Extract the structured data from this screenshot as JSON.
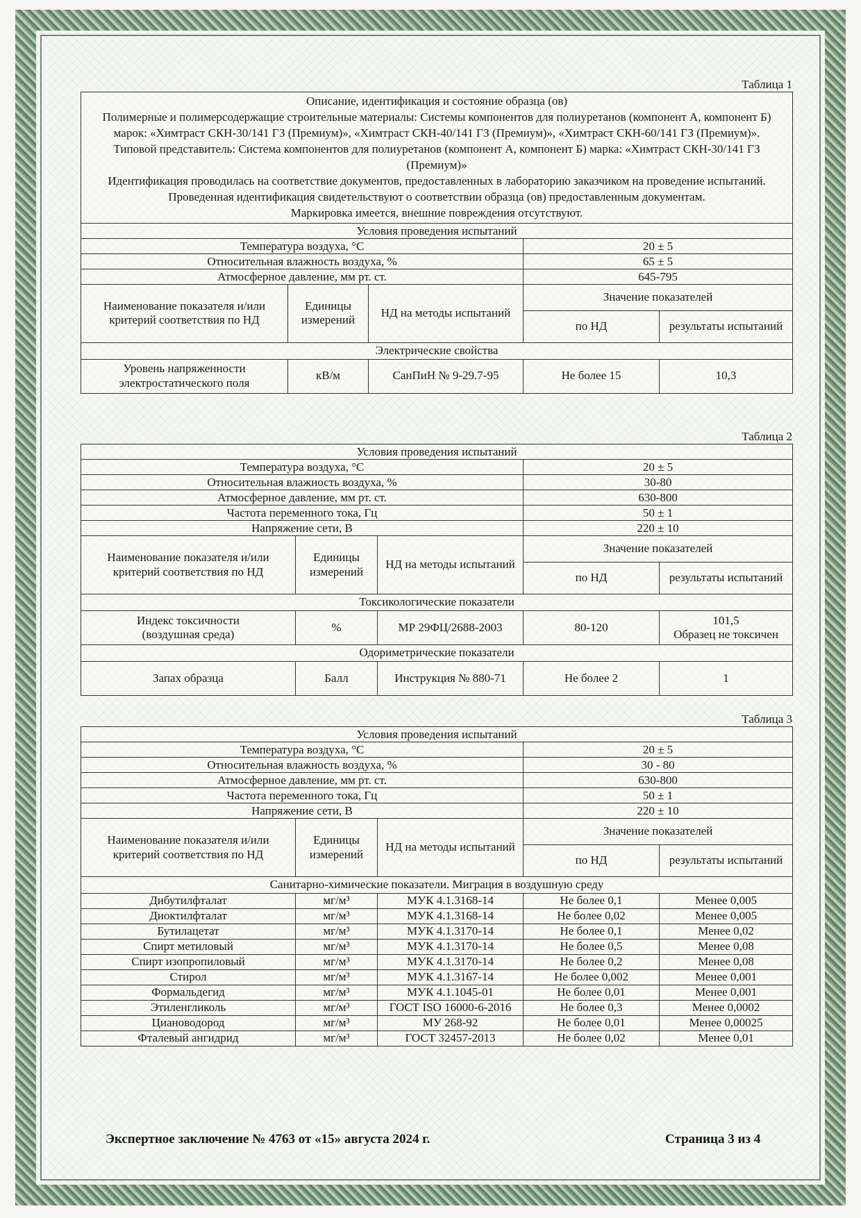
{
  "tables": [
    {
      "label": "Таблица 1",
      "description": [
        "Описание, идентификация и состояние образца (ов)",
        "Полимерные и полимерсодержащие строительные материалы: Системы компонентов для полиуретанов (компонент А, компонент Б) марок: «Химтраст СКН-30/141 ГЗ (Премиум)», «Химтраст СКН-40/141 ГЗ (Премиум)», «Химтраст СКН-60/141 ГЗ (Премиум)». Типовой представитель: Система компонентов для полиуретанов (компонент А, компонент Б) марка: «Химтраст СКН-30/141 ГЗ (Премиум)»",
        "Идентификация проводилась на соответствие документов, предоставленных в лабораторию заказчиком на проведение испытаний.",
        "Проведенная идентификация свидетельствуют о соответствии образца (ов) предоставленным документам.",
        "Маркировка имеется, внешние повреждения отсутствуют."
      ],
      "conditions": {
        "title": "Условия проведения испытаний",
        "rows": [
          [
            "Температура воздуха, °С",
            "20 ± 5"
          ],
          [
            "Относительная влажность воздуха, %",
            "65 ± 5"
          ],
          [
            "Атмосферное давление, мм рт. ст.",
            "645-795"
          ]
        ]
      },
      "header": {
        "name": "Наименование показателя и/или критерий соответствия по НД",
        "units": "Единицы измерений",
        "method": "НД на методы испытаний",
        "values": "Значение показателей",
        "by_nd": "по НД",
        "results": "результаты испытаний"
      },
      "sections": [
        {
          "title": "Электрические свойства",
          "rows": [
            [
              "Уровень напряженности электростатического поля",
              "кВ/м",
              "СанПиН № 9-29.7-95",
              "Не более 15",
              "10,3"
            ]
          ]
        }
      ]
    },
    {
      "label": "Таблица 2",
      "conditions": {
        "title": "Условия проведения испытаний",
        "rows": [
          [
            "Температура воздуха, °С",
            "20 ± 5"
          ],
          [
            "Относительная влажность воздуха, %",
            "30-80"
          ],
          [
            "Атмосферное давление, мм рт. ст.",
            "630-800"
          ],
          [
            "Частота переменного тока, Гц",
            "50 ± 1"
          ],
          [
            "Напряжение сети, В",
            "220 ± 10"
          ]
        ]
      },
      "header": {
        "name": "Наименование показателя и/или критерий соответствия по НД",
        "units": "Единицы измерений",
        "method": "НД на методы испытаний",
        "values": "Значение показателей",
        "by_nd": "по НД",
        "results": "результаты испытаний"
      },
      "sections": [
        {
          "title": "Токсикологические показатели",
          "rows": [
            [
              "Индекс токсичности\n(воздушная среда)",
              "%",
              "МР 29ФЦ/2688-2003",
              "80-120",
              "101,5\nОбразец не токсичен"
            ]
          ]
        },
        {
          "title": "Одориметрические показатели",
          "rows": [
            [
              "Запах образца",
              "Балл",
              "Инструкция № 880-71",
              "Не более 2",
              "1"
            ]
          ]
        }
      ]
    },
    {
      "label": "Таблица 3",
      "conditions": {
        "title": "Условия проведения испытаний",
        "rows": [
          [
            "Температура воздуха, °С",
            "20 ± 5"
          ],
          [
            "Относительная влажность воздуха, %",
            "30 - 80"
          ],
          [
            "Атмосферное давление, мм рт. ст.",
            "630-800"
          ],
          [
            "Частота переменного тока, Гц",
            "50 ± 1"
          ],
          [
            "Напряжение сети, В",
            "220 ± 10"
          ]
        ]
      },
      "header": {
        "name": "Наименование показателя и/или критерий соответствия по НД",
        "units": "Единицы измерений",
        "method": "НД на методы испытаний",
        "values": "Значение показателей",
        "by_nd": "по НД",
        "results": "результаты испытаний"
      },
      "sections": [
        {
          "title": "Санитарно-химические показатели. Миграция в воздушную среду",
          "rows": [
            [
              "Дибутилфталат",
              "мг/м³",
              "МУК 4.1.3168-14",
              "Не более 0,1",
              "Менее 0,005"
            ],
            [
              "Диоктилфталат",
              "мг/м³",
              "МУК 4.1.3168-14",
              "Не более 0,02",
              "Менее 0,005"
            ],
            [
              "Бутилацетат",
              "мг/м³",
              "МУК 4.1.3170-14",
              "Не более 0,1",
              "Менее 0,02"
            ],
            [
              "Спирт метиловый",
              "мг/м³",
              "МУК 4.1.3170-14",
              "Не более 0,5",
              "Менее 0,08"
            ],
            [
              "Спирт изопропиловый",
              "мг/м³",
              "МУК 4.1.3170-14",
              "Не более 0,2",
              "Менее 0,08"
            ],
            [
              "Стирол",
              "мг/м³",
              "МУК 4.1.3167-14",
              "Не более 0,002",
              "Менее 0,001"
            ],
            [
              "Формальдегид",
              "мг/м³",
              "МУК 4.1.1045-01",
              "Не более 0,01",
              "Менее 0,001"
            ],
            [
              "Этиленгликоль",
              "мг/м³",
              "ГОСТ ISO 16000-6-2016",
              "Не более 0,3",
              "Менее 0,0002"
            ],
            [
              "Циановодород",
              "мг/м³",
              "МУ 268-92",
              "Не более 0,01",
              "Менее 0,00025"
            ],
            [
              "Фталевый ангидрид",
              "мг/м³",
              "ГОСТ 32457-2013",
              "Не более 0,02",
              "Менее 0,01"
            ]
          ]
        }
      ]
    }
  ],
  "footer": {
    "left": "Экспертное заключение № 4763 от «15» августа 2024 г.",
    "right": "Страница 3 из 4"
  }
}
